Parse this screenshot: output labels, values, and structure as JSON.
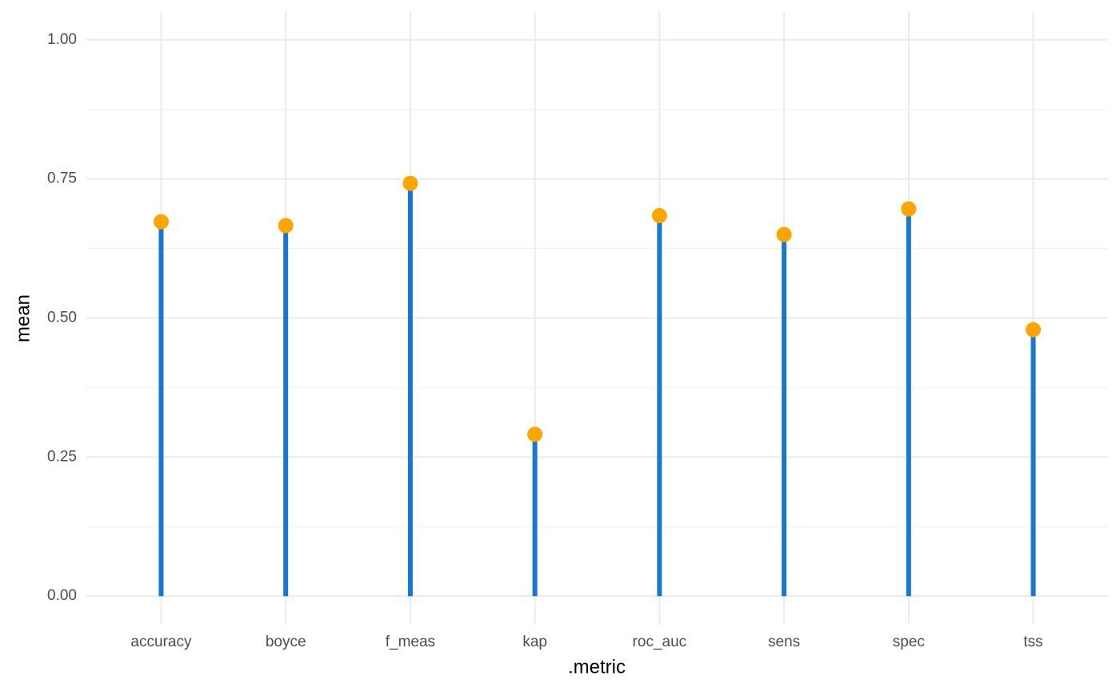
{
  "chart_data": {
    "type": "lollipop",
    "x_label": ".metric",
    "y_label": "mean",
    "categories": [
      "accuracy",
      "boyce",
      "f_meas",
      "kap",
      "roc_auc",
      "sens",
      "spec",
      "tss"
    ],
    "values": [
      0.673,
      0.666,
      0.742,
      0.291,
      0.684,
      0.65,
      0.696,
      0.479
    ],
    "stem_color": "#1976D2",
    "point_color": "#FFA500",
    "ylim": [
      -0.05,
      1.05
    ],
    "yticks": [
      {
        "value": 0,
        "label": "0.00"
      },
      {
        "value": 0.25,
        "label": "0.25"
      },
      {
        "value": 0.5,
        "label": "0.50"
      },
      {
        "value": 0.75,
        "label": "0.75"
      },
      {
        "value": 1,
        "label": "1.00"
      }
    ],
    "grid": true,
    "minor_grid": true
  }
}
